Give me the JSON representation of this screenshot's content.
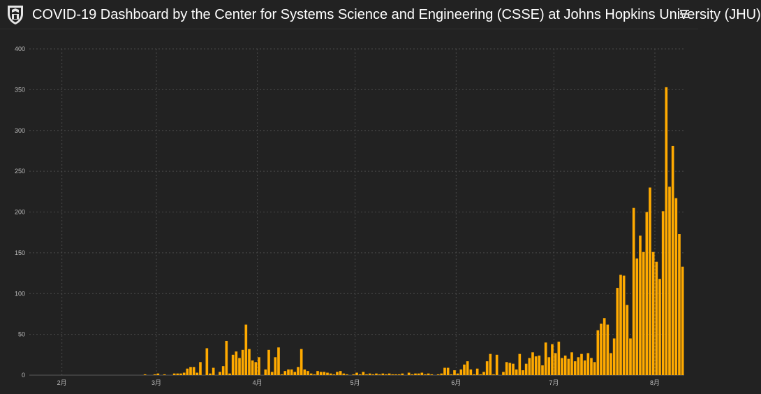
{
  "header": {
    "title": "COVID-19 Dashboard by the Center for Systems Science and Engineering (CSSE) at Johns Hopkins University (JHU)",
    "logo_icon": "jhu-shield-icon",
    "menu_icon": "hamburger-menu-icon"
  },
  "colors": {
    "background": "#222222",
    "bar": "#FFAA00",
    "grid": "#4a4a4a",
    "tick_text": "#bdbdbd"
  },
  "chart_data": {
    "type": "bar",
    "title": "",
    "xlabel": "",
    "ylabel": "",
    "ylim": [
      0,
      400
    ],
    "yticks": [
      0,
      50,
      100,
      150,
      200,
      250,
      300,
      350,
      400
    ],
    "x_start": "2020-01-22",
    "month_ticks": [
      {
        "label": "2月",
        "date": "2020-02-01"
      },
      {
        "label": "3月",
        "date": "2020-03-01"
      },
      {
        "label": "4月",
        "date": "2020-04-01"
      },
      {
        "label": "5月",
        "date": "2020-05-01"
      },
      {
        "label": "6月",
        "date": "2020-06-01"
      },
      {
        "label": "7月",
        "date": "2020-07-01"
      },
      {
        "label": "8月",
        "date": "2020-08-01"
      }
    ],
    "grid": true,
    "values": [
      0,
      0,
      0,
      0,
      0,
      0,
      0,
      0,
      0,
      0,
      0,
      0,
      0,
      0,
      0,
      0,
      0,
      0,
      0,
      0,
      0,
      0,
      0,
      0,
      0,
      0,
      0,
      0,
      0,
      0,
      0,
      0,
      0,
      0,
      0,
      1,
      0,
      0,
      1,
      2,
      0,
      1,
      0,
      0,
      2,
      2,
      2,
      3,
      8,
      10,
      10,
      3,
      16,
      0,
      33,
      2,
      9,
      0,
      4,
      11,
      42,
      2,
      25,
      29,
      21,
      31,
      62,
      32,
      18,
      16,
      22,
      0,
      7,
      31,
      4,
      22,
      34,
      1,
      5,
      7,
      7,
      4,
      10,
      32,
      7,
      5,
      2,
      1,
      5,
      4,
      4,
      3,
      2,
      1,
      4,
      5,
      2,
      1,
      0,
      1,
      3,
      1,
      4,
      1,
      2,
      1,
      2,
      1,
      2,
      1,
      2,
      1,
      1,
      1,
      2,
      0,
      3,
      1,
      2,
      2,
      3,
      1,
      2,
      1,
      0,
      1,
      2,
      9,
      9,
      1,
      6,
      2,
      7,
      13,
      17,
      7,
      1,
      8,
      1,
      4,
      17,
      26,
      1,
      25,
      0,
      4,
      16,
      15,
      14,
      7,
      26,
      6,
      14,
      21,
      28,
      23,
      24,
      12,
      40,
      22,
      38,
      27,
      41,
      21,
      24,
      20,
      28,
      17,
      22,
      26,
      18,
      27,
      21,
      16,
      55,
      63,
      70,
      62,
      27,
      45,
      107,
      123,
      122,
      86,
      45,
      205,
      143,
      171,
      151,
      200,
      230,
      151,
      139,
      118,
      201,
      353,
      231,
      281,
      217,
      173,
      133
    ]
  }
}
